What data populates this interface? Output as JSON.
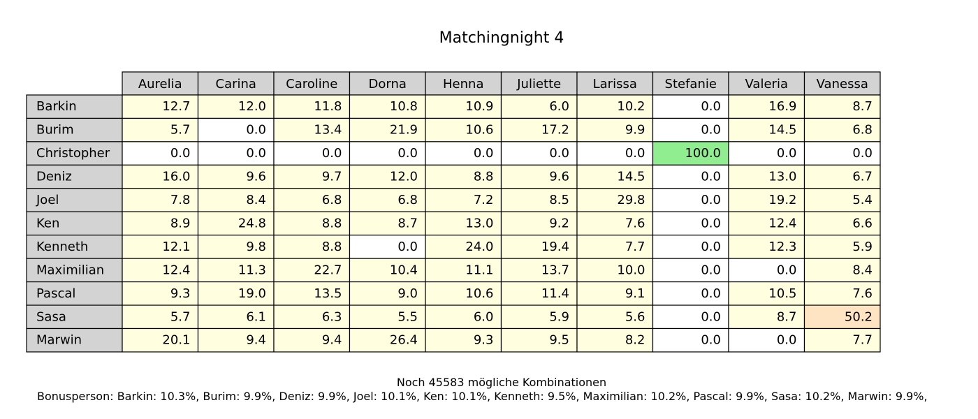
{
  "chart_data": {
    "type": "table",
    "title": "Matchingnight 4",
    "columns": [
      "Aurelia",
      "Carina",
      "Caroline",
      "Dorna",
      "Henna",
      "Juliette",
      "Larissa",
      "Stefanie",
      "Valeria",
      "Vanessa"
    ],
    "rows": [
      "Barkin",
      "Burim",
      "Christopher",
      "Deniz",
      "Joel",
      "Ken",
      "Kenneth",
      "Maximilian",
      "Pascal",
      "Sasa",
      "Marwin"
    ],
    "values": [
      [
        "12.7",
        "12.0",
        "11.8",
        "10.8",
        "10.9",
        "6.0",
        "10.2",
        "0.0",
        "16.9",
        "8.7"
      ],
      [
        "5.7",
        "0.0",
        "13.4",
        "21.9",
        "10.6",
        "17.2",
        "9.9",
        "0.0",
        "14.5",
        "6.8"
      ],
      [
        "0.0",
        "0.0",
        "0.0",
        "0.0",
        "0.0",
        "0.0",
        "0.0",
        "100.0",
        "0.0",
        "0.0"
      ],
      [
        "16.0",
        "9.6",
        "9.7",
        "12.0",
        "8.8",
        "9.6",
        "14.5",
        "0.0",
        "13.0",
        "6.7"
      ],
      [
        "7.8",
        "8.4",
        "6.8",
        "6.8",
        "7.2",
        "8.5",
        "29.8",
        "0.0",
        "19.2",
        "5.4"
      ],
      [
        "8.9",
        "24.8",
        "8.8",
        "8.7",
        "13.0",
        "9.2",
        "7.6",
        "0.0",
        "12.4",
        "6.6"
      ],
      [
        "12.1",
        "9.8",
        "8.8",
        "0.0",
        "24.0",
        "19.4",
        "7.7",
        "0.0",
        "12.3",
        "5.9"
      ],
      [
        "12.4",
        "11.3",
        "22.7",
        "10.4",
        "11.1",
        "13.7",
        "10.0",
        "0.0",
        "0.0",
        "8.4"
      ],
      [
        "9.3",
        "19.0",
        "13.5",
        "9.0",
        "10.6",
        "11.4",
        "9.1",
        "0.0",
        "10.5",
        "7.6"
      ],
      [
        "5.7",
        "6.1",
        "6.3",
        "5.5",
        "6.0",
        "5.9",
        "5.6",
        "0.0",
        "8.7",
        "50.2"
      ],
      [
        "20.1",
        "9.4",
        "9.4",
        "26.4",
        "9.3",
        "9.5",
        "8.2",
        "0.0",
        "0.0",
        "7.7"
      ]
    ],
    "colors": {
      "header": "#d3d3d3",
      "zero": "#ffffff",
      "nonzero": "#ffffe0",
      "certain": "#90ee90",
      "highlight": "#ffe4c4",
      "border": "#000000"
    },
    "highlight_cells": [
      {
        "row": 9,
        "col": 9
      }
    ]
  },
  "footer": {
    "combinations": "Noch 45583 mögliche Kombinationen",
    "bonus": "Bonusperson: Barkin: 10.3%, Burim: 9.9%, Deniz: 9.9%, Joel: 10.1%, Ken: 10.1%, Kenneth: 9.5%, Maximilian: 10.2%, Pascal: 9.9%, Sasa: 10.2%, Marwin: 9.9%,"
  }
}
